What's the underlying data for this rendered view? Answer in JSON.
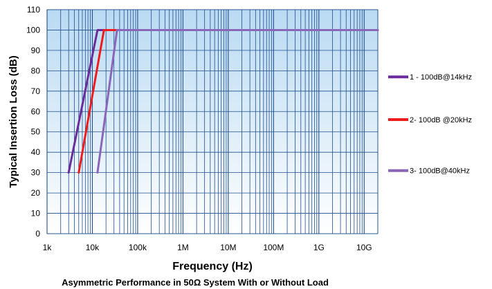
{
  "chart_data": {
    "type": "line",
    "title": "Asymmetric  Performance in 50Ω System With or Without Load",
    "xlabel": "Frequency (Hz)",
    "ylabel": "Typical Insertion Loss (dB)",
    "x_scale": "log",
    "xlim": [
      1000,
      20000000000
    ],
    "ylim": [
      0,
      110
    ],
    "x_ticks": [
      {
        "value": 1000,
        "label": "1k"
      },
      {
        "value": 10000,
        "label": "10k"
      },
      {
        "value": 100000,
        "label": "100k"
      },
      {
        "value": 1000000,
        "label": "1M"
      },
      {
        "value": 10000000,
        "label": "10M"
      },
      {
        "value": 100000000,
        "label": "100M"
      },
      {
        "value": 1000000000,
        "label": "1G"
      },
      {
        "value": 10000000000,
        "label": "10G"
      }
    ],
    "y_ticks": [
      {
        "value": 0,
        "label": "0"
      },
      {
        "value": 10,
        "label": "10"
      },
      {
        "value": 20,
        "label": "20"
      },
      {
        "value": 30,
        "label": "30"
      },
      {
        "value": 40,
        "label": "40"
      },
      {
        "value": 50,
        "label": "50"
      },
      {
        "value": 60,
        "label": "60"
      },
      {
        "value": 70,
        "label": "70"
      },
      {
        "value": 80,
        "label": "80"
      },
      {
        "value": 90,
        "label": "90"
      },
      {
        "value": 100,
        "label": "100"
      },
      {
        "value": 110,
        "label": "110"
      }
    ],
    "grid": true,
    "legend_position": "right",
    "series": [
      {
        "name": "1 - 100dB@14kHz",
        "color": "#6a2c9c",
        "points": [
          [
            3000,
            30
          ],
          [
            13000,
            100
          ],
          [
            20000000000,
            100
          ]
        ]
      },
      {
        "name": "2- 100dB @20kHz",
        "color": "#ee1c1c",
        "points": [
          [
            5000,
            30
          ],
          [
            18000,
            100
          ],
          [
            20000000000,
            100
          ]
        ]
      },
      {
        "name": "3- 100dB@40kHz",
        "color": "#8a66b8",
        "points": [
          [
            13000,
            30
          ],
          [
            35000,
            100
          ],
          [
            20000000000,
            100
          ]
        ]
      }
    ],
    "colors": {
      "plot_top": "#b9daf3",
      "plot_bottom": "#ffffff",
      "grid": "#1f4e8c",
      "frame": "#3a6ea5"
    }
  }
}
